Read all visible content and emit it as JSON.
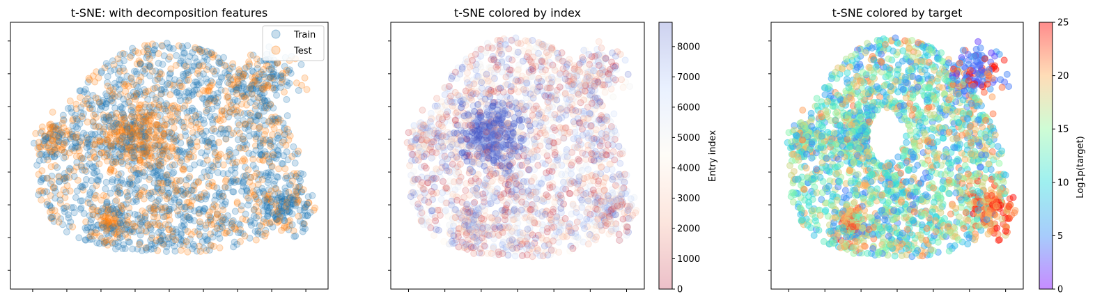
{
  "chart_data": [
    {
      "type": "scatter",
      "title": "t-SNE: with decomposition features",
      "legend": {
        "placement": "top-right",
        "entries": [
          "Train",
          "Test"
        ]
      },
      "series": [
        {
          "name": "Train",
          "color": "#1f77b4",
          "alpha": 0.2
        },
        {
          "name": "Test",
          "color": "#ff7f0e",
          "alpha": 0.2
        }
      ],
      "tick_labels_visible": false,
      "grid": false
    },
    {
      "type": "scatter",
      "title": "t-SNE colored by index",
      "colorbar": {
        "label": "Entry index",
        "range": [
          0,
          8800
        ],
        "colormap": "coolwarm_r",
        "ticks": [
          "0",
          "1000",
          "2000",
          "3000",
          "4000",
          "5000",
          "6000",
          "7000",
          "8000"
        ]
      },
      "tick_labels_visible": false,
      "grid": false
    },
    {
      "type": "scatter",
      "title": "t-SNE colored by target",
      "colorbar": {
        "label": "Log1p(target)",
        "range": [
          0,
          25
        ],
        "colormap": "rainbow",
        "ticks": [
          "0",
          "5",
          "10",
          "15",
          "20",
          "25"
        ]
      },
      "tick_labels_visible": false,
      "grid": false
    }
  ]
}
